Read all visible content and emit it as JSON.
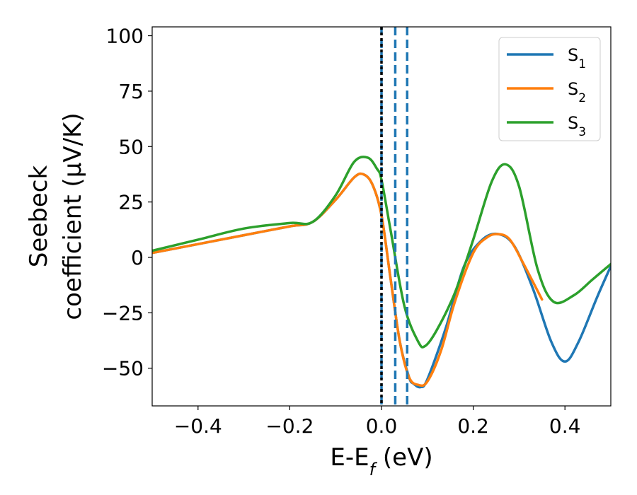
{
  "chart_data": {
    "type": "line",
    "title": "",
    "xlabel": {
      "main": "E-E",
      "sub": "f",
      "unit": " (eV)"
    },
    "ylabel": {
      "line1": "Seebeck",
      "line2": "coefficient  (μV/K)"
    },
    "xlim": [
      -0.5,
      0.5
    ],
    "ylim": [
      -67,
      104
    ],
    "x_ticks": [
      {
        "value": -0.4,
        "label": "−0.4"
      },
      {
        "value": -0.2,
        "label": "−0.2"
      },
      {
        "value": 0.0,
        "label": "0.0"
      },
      {
        "value": 0.2,
        "label": "0.2"
      },
      {
        "value": 0.4,
        "label": "0.4"
      }
    ],
    "y_ticks": [
      {
        "value": -50,
        "label": "−50"
      },
      {
        "value": -25,
        "label": "−25"
      },
      {
        "value": 0,
        "label": "0"
      },
      {
        "value": 25,
        "label": "25"
      },
      {
        "value": 50,
        "label": "50"
      },
      {
        "value": 75,
        "label": "75"
      },
      {
        "value": 100,
        "label": "100"
      }
    ],
    "legend_position": "top-right",
    "series": [
      {
        "name": "S",
        "sub": "1",
        "color": "#1f77b4",
        "x": [
          -0.5,
          -0.4,
          -0.3,
          -0.2,
          -0.15,
          -0.1,
          -0.06,
          -0.04,
          -0.02,
          0.0,
          0.02,
          0.04,
          0.06,
          0.07,
          0.085,
          0.1,
          0.14,
          0.18,
          0.22,
          0.255,
          0.29,
          0.33,
          0.37,
          0.4,
          0.43,
          0.47,
          0.5
        ],
        "y": [
          2,
          6,
          10,
          14,
          16,
          26,
          36,
          37.5,
          33,
          19,
          -10,
          -38,
          -54,
          -57,
          -58.5,
          -55,
          -32,
          -4,
          8,
          10.5,
          5,
          -14,
          -38,
          -47,
          -38,
          -18,
          -4
        ]
      },
      {
        "name": "S",
        "sub": "2",
        "color": "#ff7f0e",
        "x": [
          -0.5,
          -0.4,
          -0.3,
          -0.2,
          -0.15,
          -0.1,
          -0.06,
          -0.04,
          -0.02,
          0.0,
          0.02,
          0.04,
          0.06,
          0.08,
          0.1,
          0.13,
          0.16,
          0.2,
          0.23,
          0.255,
          0.28,
          0.31,
          0.35
        ],
        "y": [
          2,
          6,
          10,
          14,
          16,
          26,
          36,
          37.5,
          33,
          19,
          -10,
          -38,
          -54,
          -57.5,
          -56,
          -42,
          -20,
          2,
          9,
          10.5,
          8,
          -3,
          -19
        ]
      },
      {
        "name": "S",
        "sub": "3",
        "color": "#2ca02c",
        "x": [
          -0.5,
          -0.4,
          -0.3,
          -0.2,
          -0.15,
          -0.1,
          -0.06,
          -0.03,
          -0.01,
          0.0,
          0.02,
          0.05,
          0.08,
          0.095,
          0.12,
          0.16,
          0.2,
          0.24,
          0.27,
          0.3,
          0.34,
          0.375,
          0.42,
          0.46,
          0.5
        ],
        "y": [
          3,
          8,
          13,
          15.5,
          16,
          28,
          43,
          45,
          40,
          35,
          12,
          -22,
          -38,
          -40,
          -33,
          -16,
          8,
          34,
          42,
          32,
          -5,
          -20,
          -17,
          -10,
          -3
        ]
      }
    ],
    "vlines": [
      {
        "x": 0.0,
        "style": "dashed",
        "color": "#1f77b4"
      },
      {
        "x": 0.0,
        "style": "dotted",
        "color": "#000000"
      },
      {
        "x": 0.03,
        "style": "dashed",
        "color": "#1f77b4"
      },
      {
        "x": 0.056,
        "style": "dashed",
        "color": "#1f77b4"
      }
    ]
  }
}
